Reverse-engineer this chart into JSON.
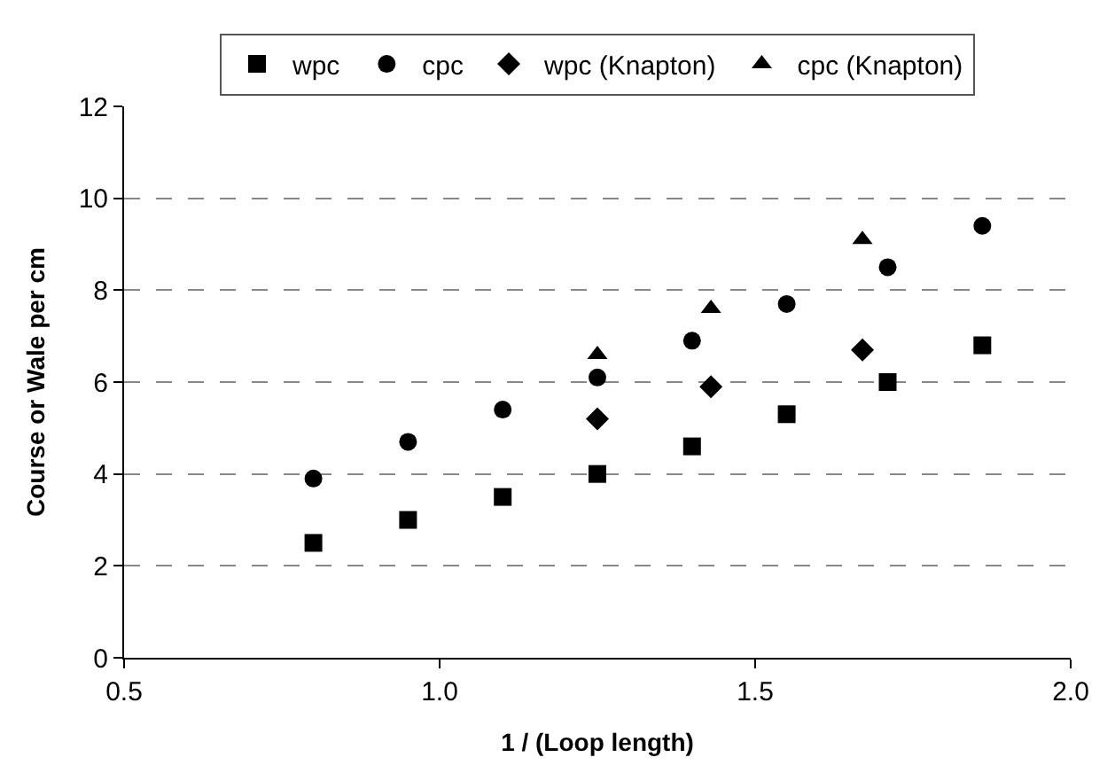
{
  "chart_data": {
    "type": "scatter",
    "xlabel": "1 / (Loop length)",
    "ylabel": "Course or Wale per cm",
    "xlim": [
      0.5,
      2.0
    ],
    "xticks": [
      {
        "value": 0.5,
        "label": "0.5"
      },
      {
        "value": 1.0,
        "label": "1.0"
      },
      {
        "value": 1.5,
        "label": "1.5"
      },
      {
        "value": 2.0,
        "label": "2.0"
      }
    ],
    "ylim": [
      0,
      12
    ],
    "yticks": [
      0,
      2,
      4,
      6,
      8,
      10,
      12
    ],
    "grid": "y",
    "legend": "top",
    "series": [
      {
        "name": "wpc",
        "color": "#000000",
        "marker": "square",
        "x": [
          0.8,
          0.95,
          1.1,
          1.25,
          1.4,
          1.55,
          1.71,
          1.86
        ],
        "values": [
          2.5,
          3.0,
          3.5,
          4.0,
          4.6,
          5.3,
          6.0,
          6.8
        ]
      },
      {
        "name": "cpc",
        "color": "#000000",
        "marker": "circle",
        "x": [
          0.8,
          0.95,
          1.1,
          1.25,
          1.4,
          1.55,
          1.71,
          1.86
        ],
        "values": [
          3.9,
          4.7,
          5.4,
          6.1,
          6.9,
          7.7,
          8.5,
          9.4
        ]
      },
      {
        "name": "wpc (Knapton)",
        "color": "#000000",
        "marker": "diamond",
        "x": [
          1.25,
          1.43,
          1.67
        ],
        "values": [
          5.2,
          5.9,
          6.7
        ]
      },
      {
        "name": "cpc (Knapton)",
        "color": "#000000",
        "marker": "triangle",
        "x": [
          1.25,
          1.43,
          1.67
        ],
        "values": [
          6.6,
          7.6,
          9.1
        ]
      }
    ]
  }
}
